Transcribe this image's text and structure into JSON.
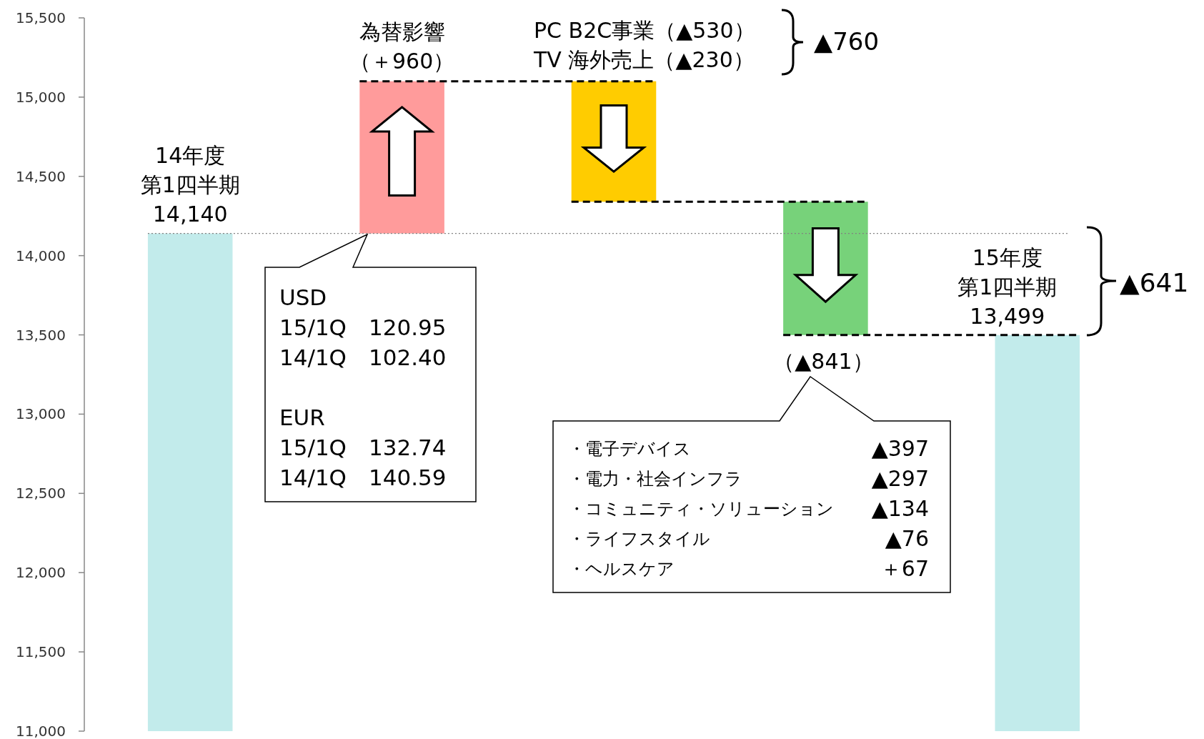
{
  "chart_data": {
    "type": "bar",
    "categories": [
      null,
      null,
      null,
      null,
      null
    ],
    "base": [
      0,
      14140,
      15100,
      14340,
      0
    ],
    "values": [
      14140,
      960,
      -760,
      -841,
      13499
    ],
    "colors": [
      "#c2ebeb",
      "#ff9b9b",
      "#ffcc00",
      "#77d27a",
      "#c2ebeb"
    ],
    "ylim": [
      11000,
      15500
    ],
    "yticks": [
      {
        "value": 11000,
        "label": "11,000"
      },
      {
        "value": 11500,
        "label": "11,500"
      },
      {
        "value": 12000,
        "label": "12,000"
      },
      {
        "value": 12500,
        "label": "12,500"
      },
      {
        "value": 13000,
        "label": "13,000"
      },
      {
        "value": 13500,
        "label": "13,500"
      },
      {
        "value": 14000,
        "label": "14,000"
      },
      {
        "value": 14500,
        "label": "14,500"
      },
      {
        "value": 15000,
        "label": "15,000"
      },
      {
        "value": 15500,
        "label": "15,500"
      }
    ],
    "tick_labels": "y",
    "ref_lines": [
      {
        "axis": "y",
        "value": 14140,
        "line_style": "dotted",
        "color": "#808080"
      },
      {
        "axis": "y",
        "value": 15100,
        "line_style": "dashed",
        "color": "#000000"
      },
      {
        "axis": "y",
        "value": 14340,
        "line_style": "dashed",
        "color": "#000000"
      },
      {
        "axis": "y",
        "value": 13499,
        "line_style": "dashed",
        "color": "#000000"
      }
    ],
    "annotations": [
      "14年度",
      "第1四半期",
      "14,140",
      "為替影響",
      "（＋960）",
      "PC B2C事業（▲530）",
      "TV 海外売上（▲230）",
      "▲760",
      "USD\n15/1Q　120.95\n14/1Q　102.40\n\nEUR\n15/1Q　132.74\n14/1Q　140.59",
      "（▲841）",
      "・電子デバイス",
      "・電力・社会インフラ",
      "・コミュニティ・ソリューション",
      "・ライフスタイル",
      "・ヘルスケア",
      "▲397",
      "▲297",
      "▲134",
      "▲76",
      "＋67",
      "15年度",
      "第1四半期",
      "13,499",
      "▲641"
    ]
  }
}
